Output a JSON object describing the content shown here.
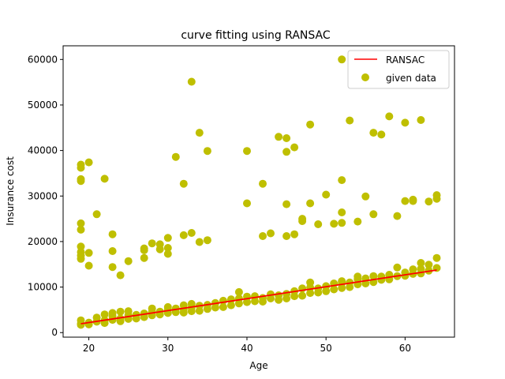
{
  "chart_data": {
    "type": "scatter",
    "title": "curve fitting using RANSAC",
    "xlabel": "Age",
    "ylabel": "Insurance cost",
    "xlim": [
      16.75,
      66.25
    ],
    "ylim": [
      -1000,
      63000
    ],
    "xticks": [
      20,
      30,
      40,
      50,
      60
    ],
    "yticks": [
      0,
      10000,
      20000,
      30000,
      40000,
      50000,
      60000
    ],
    "xtick_labels": [
      "20",
      "30",
      "40",
      "50",
      "60"
    ],
    "ytick_labels": [
      "0",
      "10000",
      "20000",
      "30000",
      "40000",
      "50000",
      "60000"
    ],
    "grid": false,
    "legend": {
      "placement": "top-right",
      "entries": [
        {
          "label": "RANSAC",
          "kind": "line",
          "color": "#ff0000"
        },
        {
          "label": "given data",
          "kind": "marker",
          "color": "#bfbf00"
        }
      ]
    },
    "series": [
      {
        "name": "given data",
        "kind": "scatter",
        "color": "#bfbf00",
        "points": [
          [
            19,
            2000
          ],
          [
            19,
            2700
          ],
          [
            19,
            1700
          ],
          [
            20,
            1800
          ],
          [
            20,
            2200
          ],
          [
            21,
            2400
          ],
          [
            21,
            3300
          ],
          [
            22,
            2100
          ],
          [
            22,
            2700
          ],
          [
            22,
            4000
          ],
          [
            23,
            2800
          ],
          [
            23,
            3600
          ],
          [
            23,
            4300
          ],
          [
            24,
            2500
          ],
          [
            24,
            3100
          ],
          [
            24,
            4600
          ],
          [
            25,
            3000
          ],
          [
            25,
            3800
          ],
          [
            25,
            4700
          ],
          [
            26,
            3100
          ],
          [
            26,
            3900
          ],
          [
            27,
            3400
          ],
          [
            27,
            4200
          ],
          [
            28,
            3800
          ],
          [
            28,
            4500
          ],
          [
            28,
            5300
          ],
          [
            29,
            4000
          ],
          [
            29,
            4600
          ],
          [
            30,
            4300
          ],
          [
            30,
            5000
          ],
          [
            30,
            5600
          ],
          [
            31,
            4500
          ],
          [
            31,
            5300
          ],
          [
            32,
            4400
          ],
          [
            32,
            5100
          ],
          [
            32,
            6000
          ],
          [
            33,
            4700
          ],
          [
            33,
            5500
          ],
          [
            33,
            6300
          ],
          [
            34,
            4800
          ],
          [
            34,
            5900
          ],
          [
            35,
            5200
          ],
          [
            35,
            6100
          ],
          [
            36,
            5500
          ],
          [
            36,
            6500
          ],
          [
            37,
            5600
          ],
          [
            37,
            7000
          ],
          [
            38,
            6000
          ],
          [
            38,
            7300
          ],
          [
            39,
            6400
          ],
          [
            39,
            7500
          ],
          [
            39,
            8900
          ],
          [
            40,
            6700
          ],
          [
            40,
            7900
          ],
          [
            41,
            6900
          ],
          [
            41,
            8000
          ],
          [
            42,
            6800
          ],
          [
            42,
            7600
          ],
          [
            43,
            7500
          ],
          [
            43,
            8400
          ],
          [
            44,
            7200
          ],
          [
            44,
            8200
          ],
          [
            45,
            7500
          ],
          [
            45,
            8500
          ],
          [
            46,
            8000
          ],
          [
            46,
            9100
          ],
          [
            47,
            8100
          ],
          [
            47,
            9700
          ],
          [
            48,
            8700
          ],
          [
            48,
            9900
          ],
          [
            48,
            11000
          ],
          [
            49,
            8800
          ],
          [
            49,
            9700
          ],
          [
            50,
            9100
          ],
          [
            50,
            10200
          ],
          [
            51,
            9500
          ],
          [
            51,
            10800
          ],
          [
            52,
            9800
          ],
          [
            52,
            10900
          ],
          [
            52,
            11300
          ],
          [
            53,
            10000
          ],
          [
            53,
            11000
          ],
          [
            54,
            10600
          ],
          [
            54,
            11700
          ],
          [
            54,
            12300
          ],
          [
            55,
            10800
          ],
          [
            55,
            11900
          ],
          [
            56,
            11100
          ],
          [
            56,
            12400
          ],
          [
            57,
            11600
          ],
          [
            57,
            12300
          ],
          [
            58,
            11700
          ],
          [
            58,
            12700
          ],
          [
            59,
            12400
          ],
          [
            59,
            14300
          ],
          [
            60,
            12500
          ],
          [
            60,
            13200
          ],
          [
            61,
            12900
          ],
          [
            61,
            13900
          ],
          [
            62,
            13000
          ],
          [
            62,
            14000
          ],
          [
            62,
            15300
          ],
          [
            63,
            13600
          ],
          [
            63,
            14900
          ],
          [
            64,
            14200
          ],
          [
            64,
            16400
          ],
          [
            19,
            36900
          ],
          [
            19,
            36200
          ],
          [
            19,
            33700
          ],
          [
            19,
            33300
          ],
          [
            19,
            24000
          ],
          [
            19,
            22600
          ],
          [
            19,
            18900
          ],
          [
            19,
            17700
          ],
          [
            19,
            16900
          ],
          [
            19,
            16200
          ],
          [
            20,
            37400
          ],
          [
            20,
            17500
          ],
          [
            20,
            14700
          ],
          [
            21,
            26000
          ],
          [
            22,
            33800
          ],
          [
            23,
            21600
          ],
          [
            23,
            17900
          ],
          [
            23,
            14400
          ],
          [
            24,
            12600
          ],
          [
            25,
            15700
          ],
          [
            27,
            18500
          ],
          [
            27,
            18100
          ],
          [
            27,
            16400
          ],
          [
            28,
            19600
          ],
          [
            29,
            19400
          ],
          [
            29,
            18300
          ],
          [
            30,
            20800
          ],
          [
            30,
            18600
          ],
          [
            30,
            17300
          ],
          [
            31,
            38600
          ],
          [
            32,
            32700
          ],
          [
            32,
            21400
          ],
          [
            33,
            55100
          ],
          [
            33,
            21900
          ],
          [
            34,
            43900
          ],
          [
            34,
            19900
          ],
          [
            35,
            39900
          ],
          [
            35,
            20300
          ],
          [
            40,
            39900
          ],
          [
            40,
            28400
          ],
          [
            42,
            32700
          ],
          [
            42,
            21200
          ],
          [
            43,
            21800
          ],
          [
            44,
            43000
          ],
          [
            45,
            42700
          ],
          [
            45,
            39700
          ],
          [
            45,
            28200
          ],
          [
            45,
            21200
          ],
          [
            46,
            40700
          ],
          [
            46,
            21600
          ],
          [
            47,
            25000
          ],
          [
            47,
            24500
          ],
          [
            48,
            45700
          ],
          [
            48,
            28400
          ],
          [
            49,
            23800
          ],
          [
            50,
            30300
          ],
          [
            51,
            23900
          ],
          [
            52,
            60000
          ],
          [
            52,
            33500
          ],
          [
            52,
            26400
          ],
          [
            52,
            24100
          ],
          [
            53,
            46600
          ],
          [
            54,
            24400
          ],
          [
            55,
            29900
          ],
          [
            56,
            43900
          ],
          [
            56,
            26000
          ],
          [
            57,
            43500
          ],
          [
            58,
            47500
          ],
          [
            59,
            25600
          ],
          [
            60,
            46100
          ],
          [
            60,
            28900
          ],
          [
            61,
            29200
          ],
          [
            61,
            28900
          ],
          [
            62,
            46700
          ],
          [
            63,
            28800
          ],
          [
            64,
            30200
          ],
          [
            64,
            29400
          ]
        ]
      },
      {
        "name": "RANSAC",
        "kind": "line",
        "color": "#ff0000",
        "x": [
          19,
          64
        ],
        "y": [
          1950,
          13750
        ]
      }
    ]
  }
}
